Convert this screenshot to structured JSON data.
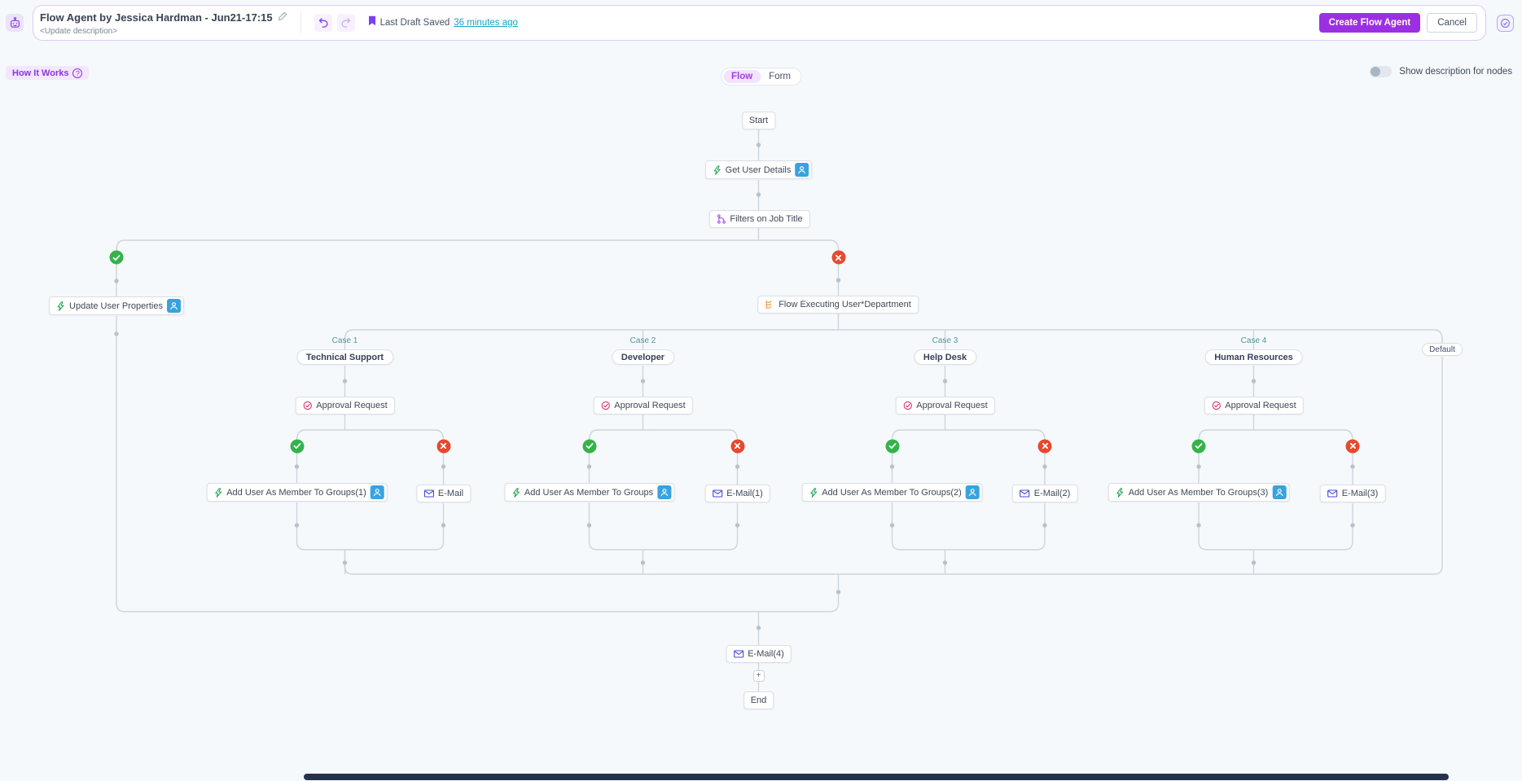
{
  "header": {
    "title": "Flow Agent by Jessica Hardman - Jun21-17:15",
    "subtitle": "<Update description>",
    "last_draft_label": "Last Draft Saved",
    "last_draft_link": "36 minutes ago",
    "create_button": "Create Flow Agent",
    "cancel_button": "Cancel"
  },
  "toolbar": {
    "how_it_works": "How It Works",
    "view_toggle": [
      "Flow",
      "Form"
    ],
    "active_view": "Flow",
    "show_description_label": "Show description for nodes",
    "show_description_on": false
  },
  "colors": {
    "accent_purple": "#9b30e2",
    "link_teal": "#12a5c6",
    "success_green": "#35b34a",
    "failure_red": "#e6492d",
    "canvas_bg": "#f6f9fc"
  },
  "flow": {
    "case_labels": [
      "Case 1",
      "Case 2",
      "Case 3",
      "Case 4"
    ],
    "add_node_label": "+",
    "nodes": [
      {
        "id": "start",
        "label": "Start",
        "kind": "terminal"
      },
      {
        "id": "get-user-details",
        "label": "Get User Details",
        "kind": "action",
        "icon": "lightning-icon",
        "badge": true
      },
      {
        "id": "filters-on-job-title",
        "label": "Filters on Job Title",
        "kind": "action",
        "icon": "branch-filter-icon"
      },
      {
        "id": "update-user-properties",
        "label": "Update User Properties",
        "kind": "action",
        "icon": "lightning-icon",
        "badge": true
      },
      {
        "id": "flow-executing-user-department",
        "label": "Flow Executing User*Department",
        "kind": "action",
        "icon": "switch-case-icon"
      },
      {
        "id": "case-technical-support",
        "label": "Technical Support",
        "kind": "pill"
      },
      {
        "id": "case-developer",
        "label": "Developer",
        "kind": "pill"
      },
      {
        "id": "case-help-desk",
        "label": "Help Desk",
        "kind": "pill"
      },
      {
        "id": "case-human-resources",
        "label": "Human Resources",
        "kind": "pill"
      },
      {
        "id": "default-case",
        "label": "Default",
        "kind": "pill-small"
      },
      {
        "id": "approval-request-1",
        "label": "Approval Request",
        "kind": "action",
        "icon": "approval-check-icon"
      },
      {
        "id": "approval-request-2",
        "label": "Approval Request",
        "kind": "action",
        "icon": "approval-check-icon"
      },
      {
        "id": "approval-request-3",
        "label": "Approval Request",
        "kind": "action",
        "icon": "approval-check-icon"
      },
      {
        "id": "approval-request-4",
        "label": "Approval Request",
        "kind": "action",
        "icon": "approval-check-icon"
      },
      {
        "id": "add-user-groups-1",
        "label": "Add User As Member To Groups(1)",
        "kind": "action",
        "icon": "lightning-icon",
        "badge": true
      },
      {
        "id": "email-1",
        "label": "E-Mail",
        "kind": "action",
        "icon": "mail-icon"
      },
      {
        "id": "add-user-groups-2",
        "label": "Add User As Member To Groups",
        "kind": "action",
        "icon": "lightning-icon",
        "badge": true
      },
      {
        "id": "email-2",
        "label": "E-Mail(1)",
        "kind": "action",
        "icon": "mail-icon"
      },
      {
        "id": "add-user-groups-3",
        "label": "Add User As Member To Groups(2)",
        "kind": "action",
        "icon": "lightning-icon",
        "badge": true
      },
      {
        "id": "email-3",
        "label": "E-Mail(2)",
        "kind": "action",
        "icon": "mail-icon"
      },
      {
        "id": "add-user-groups-4",
        "label": "Add User As Member To Groups(3)",
        "kind": "action",
        "icon": "lightning-icon",
        "badge": true
      },
      {
        "id": "email-4",
        "label": "E-Mail(3)",
        "kind": "action",
        "icon": "mail-icon"
      },
      {
        "id": "email-5",
        "label": "E-Mail(4)",
        "kind": "action",
        "icon": "mail-icon"
      },
      {
        "id": "end",
        "label": "End",
        "kind": "terminal"
      }
    ]
  }
}
